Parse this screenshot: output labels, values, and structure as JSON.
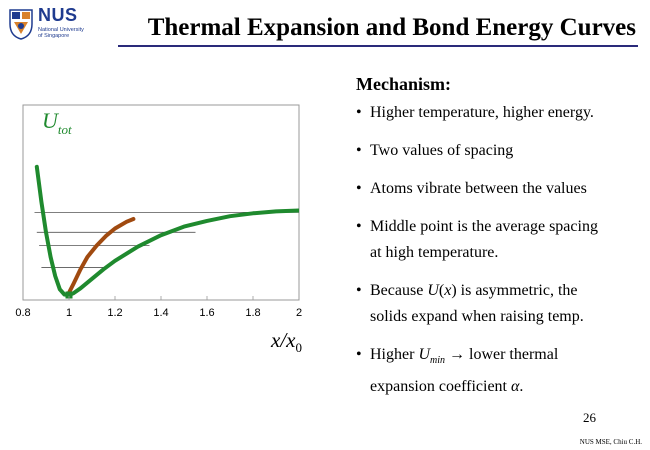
{
  "logo": {
    "name": "NUS",
    "sub1": "National University",
    "sub2": "of Singapore"
  },
  "title": "Thermal Expansion and Bond Energy Curves",
  "chart_data": {
    "type": "line",
    "xlabel": "x/x",
    "xlabel_sub": "0",
    "x_ticks": [
      "0.8",
      "1",
      "1.2",
      "1.4",
      "1.6",
      "1.8",
      "2"
    ],
    "xlim": [
      0.8,
      2.0
    ],
    "curve_label": "U",
    "curve_label_sub": "tot",
    "grid": false,
    "series": [
      {
        "name": "U_tot",
        "color": "#1f8a2e",
        "x": [
          0.86,
          0.88,
          0.9,
          0.92,
          0.94,
          0.96,
          0.98,
          1.0,
          1.02,
          1.05,
          1.1,
          1.15,
          1.2,
          1.3,
          1.4,
          1.5,
          1.6,
          1.7,
          1.8,
          1.9,
          2.0
        ],
        "y": [
          1.35,
          0.98,
          0.66,
          0.4,
          0.2,
          0.06,
          0.005,
          0.0,
          0.02,
          0.07,
          0.17,
          0.27,
          0.36,
          0.51,
          0.63,
          0.72,
          0.78,
          0.83,
          0.86,
          0.88,
          0.89
        ]
      },
      {
        "name": "average spacing",
        "color": "#a04a10",
        "x": [
          0.995,
          1.02,
          1.05,
          1.08,
          1.12,
          1.16,
          1.2,
          1.25,
          1.28
        ],
        "y": [
          0.0,
          0.12,
          0.27,
          0.4,
          0.52,
          0.62,
          0.7,
          0.77,
          0.8
        ]
      }
    ],
    "energy_levels": [
      {
        "x_start": 0.88,
        "x_end": 1.17,
        "y": 0.29
      },
      {
        "x_start": 0.87,
        "x_end": 1.35,
        "y": 0.52
      },
      {
        "x_start": 0.86,
        "x_end": 1.55,
        "y": 0.66
      },
      {
        "x_start": 0.85,
        "x_end": 2.0,
        "y": 0.87
      }
    ],
    "min_marker": {
      "x": 1.0,
      "y": 0.0,
      "color": "#1f8a2e"
    }
  },
  "mechanism": {
    "heading": "Mechanism:",
    "bullets": [
      {
        "text": "Higher temperature, higher energy."
      },
      {
        "text": "Two values of spacing"
      },
      {
        "text": "Atoms vibrate between the values"
      },
      {
        "line1": "Middle point is the average spacing",
        "line2": "at high temperature."
      },
      {
        "pre": "Because ",
        "fn": "U",
        "open": "(",
        "arg": "x",
        "close": ")",
        "post": " is asymmetric, the",
        "line2": "solids expand when raising temp."
      },
      {
        "pre": "Higher ",
        "sym": "U",
        "sub": "min",
        "post": " → lower thermal",
        "line2pre": "expansion coefficient ",
        "alpha": "α",
        "line2post": "."
      }
    ]
  },
  "page_number": "26",
  "footer": "NUS MSE, Chiu C.H."
}
